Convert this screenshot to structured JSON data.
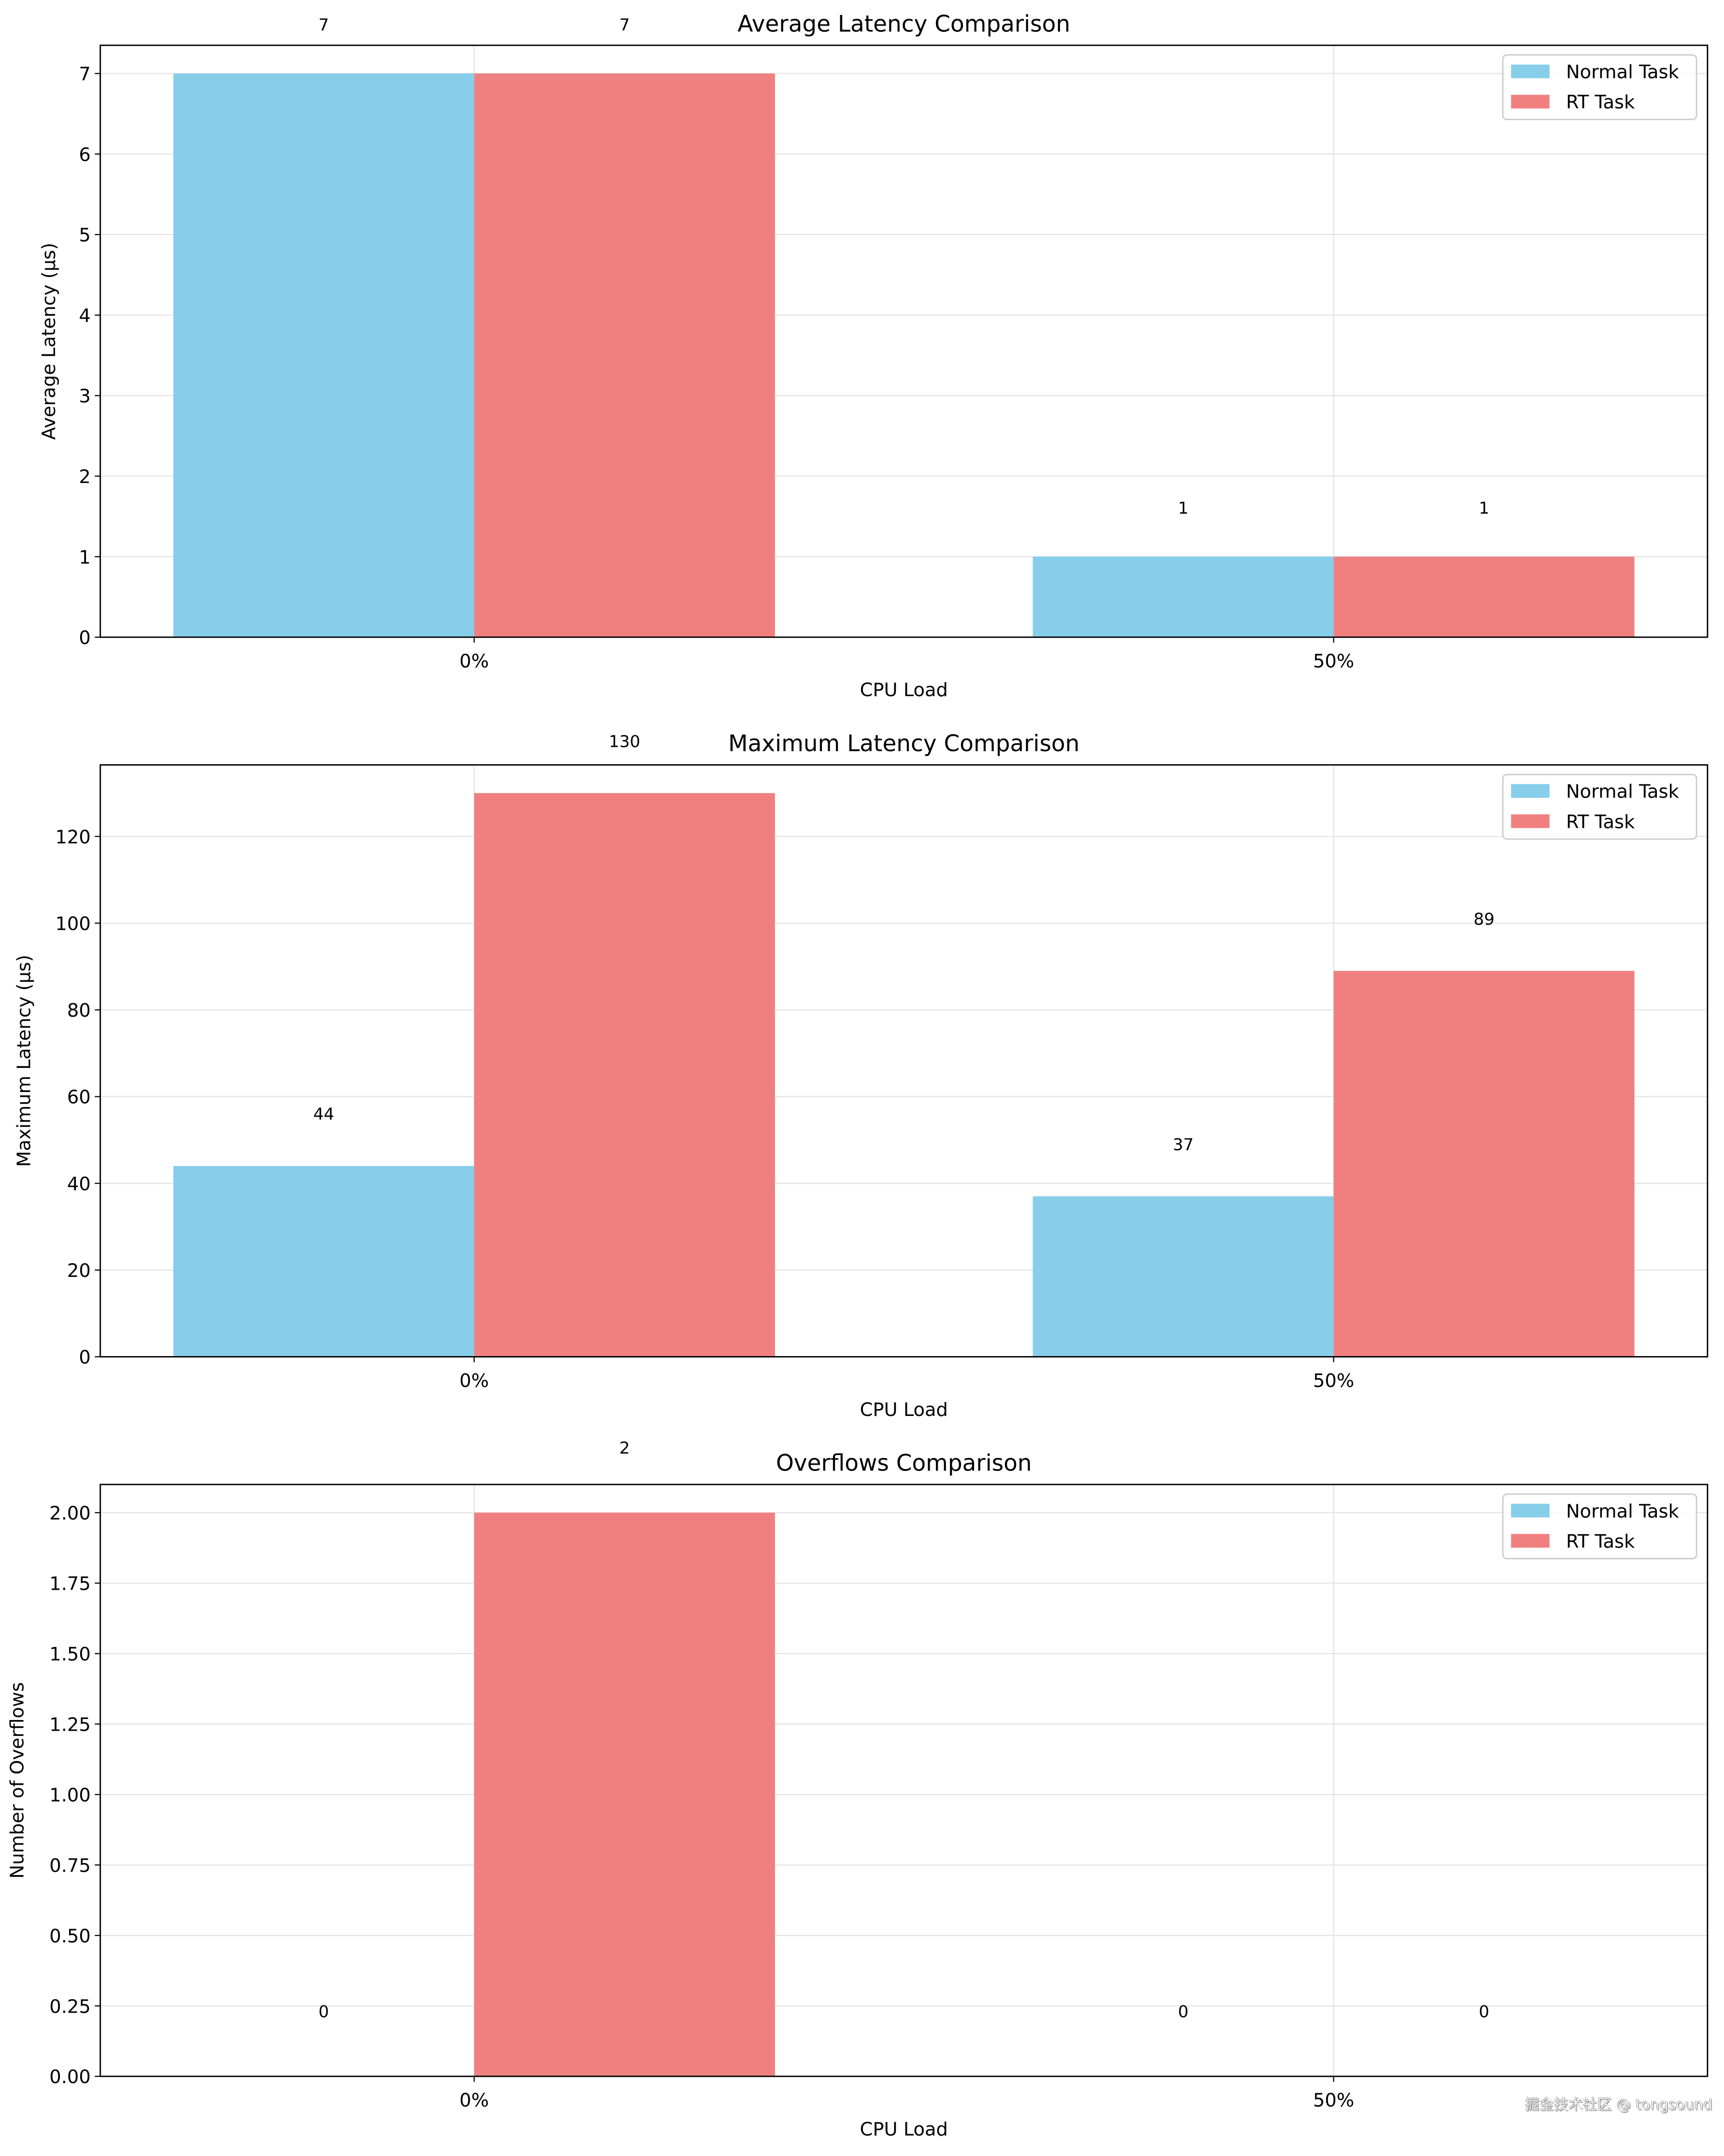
{
  "colors": {
    "normal": "#87CEEB",
    "rt": "#F08080"
  },
  "watermark": "掘金技术社区 @ tongsound",
  "chart_data": [
    {
      "type": "bar",
      "title": "Average Latency Comparison",
      "xlabel": "CPU Load",
      "ylabel": "Average Latency (µs)",
      "categories": [
        "0%",
        "50%"
      ],
      "series": [
        {
          "name": "Normal Task",
          "values": [
            7,
            1
          ]
        },
        {
          "name": "RT Task",
          "values": [
            7,
            1
          ]
        }
      ],
      "ylim": [
        0,
        7.35
      ],
      "yticks": [
        "0",
        "1",
        "2",
        "3",
        "4",
        "5",
        "6",
        "7"
      ],
      "ytick_values": [
        0,
        1,
        2,
        3,
        4,
        5,
        6,
        7
      ],
      "data_labels": [
        [
          "7",
          "1"
        ],
        [
          "7",
          "1"
        ]
      ],
      "grid": true,
      "legend": "upper right"
    },
    {
      "type": "bar",
      "title": "Maximum Latency Comparison",
      "xlabel": "CPU Load",
      "ylabel": "Maximum Latency (µs)",
      "categories": [
        "0%",
        "50%"
      ],
      "series": [
        {
          "name": "Normal Task",
          "values": [
            44,
            37
          ]
        },
        {
          "name": "RT Task",
          "values": [
            130,
            89
          ]
        }
      ],
      "ylim": [
        0,
        136.5
      ],
      "yticks": [
        "0",
        "20",
        "40",
        "60",
        "80",
        "100",
        "120"
      ],
      "ytick_values": [
        0,
        20,
        40,
        60,
        80,
        100,
        120
      ],
      "data_labels": [
        [
          "44",
          "37"
        ],
        [
          "130",
          "89"
        ]
      ],
      "grid": true,
      "legend": "upper right"
    },
    {
      "type": "bar",
      "title": "Overflows Comparison",
      "xlabel": "CPU Load",
      "ylabel": "Number of Overflows",
      "categories": [
        "0%",
        "50%"
      ],
      "series": [
        {
          "name": "Normal Task",
          "values": [
            0,
            0
          ]
        },
        {
          "name": "RT Task",
          "values": [
            2,
            0
          ]
        }
      ],
      "ylim": [
        0,
        2.1
      ],
      "yticks": [
        "0.00",
        "0.25",
        "0.50",
        "0.75",
        "1.00",
        "1.25",
        "1.50",
        "1.75",
        "2.00"
      ],
      "ytick_values": [
        0,
        0.25,
        0.5,
        0.75,
        1,
        1.25,
        1.5,
        1.75,
        2
      ],
      "data_labels": [
        [
          "0",
          "0"
        ],
        [
          "2",
          "0"
        ]
      ],
      "grid": true,
      "legend": "upper right"
    }
  ]
}
